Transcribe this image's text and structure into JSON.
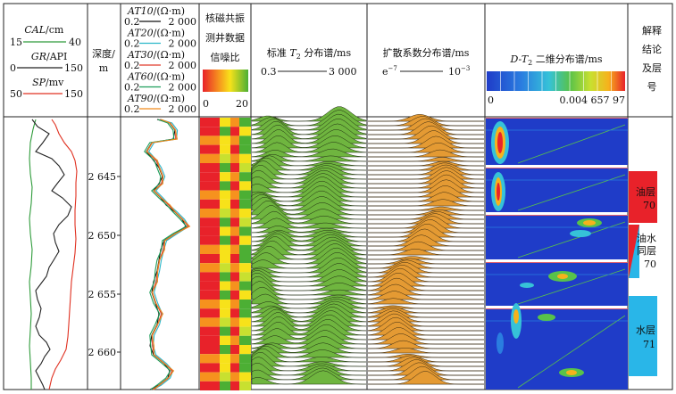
{
  "track1": {
    "cal": {
      "name": "CAL",
      "unit": "/cm",
      "min": "15",
      "max": "40",
      "color": "#2e9b3a"
    },
    "gr": {
      "name": "GR",
      "unit": "/API",
      "min": "0",
      "max": "150",
      "color": "#222222"
    },
    "sp": {
      "name": "SP",
      "unit": "/mv",
      "min": "50",
      "max": "150",
      "color": "#e03020"
    }
  },
  "depth": {
    "label_line1": "深度/",
    "label_line2": "m",
    "ticks": [
      "2 645",
      "2 650",
      "2 655",
      "2 660"
    ]
  },
  "track3": {
    "curves": [
      {
        "name": "AT10",
        "unit": "/(Ω·m)",
        "min": "0.2",
        "max": "2 000",
        "color": "#111111"
      },
      {
        "name": "AT20",
        "unit": "/(Ω·m)",
        "min": "0.2",
        "max": "2 000",
        "color": "#2bb7c9"
      },
      {
        "name": "AT30",
        "unit": "/(Ω·m)",
        "min": "0.2",
        "max": "2 000",
        "color": "#e03a2a"
      },
      {
        "name": "AT60",
        "unit": "/(Ω·m)",
        "min": "0.2",
        "max": "2 000",
        "color": "#1d9e5a"
      },
      {
        "name": "AT90",
        "unit": "/(Ω·m)",
        "min": "0.2",
        "max": "2 000",
        "color": "#f08a1c"
      }
    ]
  },
  "track4": {
    "title_line1": "核磁共振",
    "title_line2": "测井数据",
    "title_line3": "信噪比",
    "min": "0",
    "max": "20"
  },
  "track5": {
    "title_prefix": "标准 ",
    "title_sym": "T",
    "title_sub": "2",
    "title_suffix": " 分布谱/ms",
    "min": "0.3",
    "max": "3 000",
    "fill": "#6fb53f"
  },
  "track6": {
    "title": "扩散系数分布谱/ms",
    "min_base": "e",
    "min_exp": "−7",
    "max_base": "10",
    "max_exp": "−3",
    "fill": "#e49a33"
  },
  "track7": {
    "title_sym": "D-T",
    "title_sub": "2",
    "title_suffix": " 二维分布谱/ms",
    "min": "0",
    "max": "0.004 657 97"
  },
  "track8": {
    "title_line1": "解释",
    "title_line2": "结论",
    "title_line3": "及层",
    "title_line4": "号",
    "zones": [
      {
        "line1": "油层",
        "line2": "70",
        "color": "#e8222a"
      },
      {
        "line1": "油水",
        "line2": "同层",
        "line3": "70",
        "color": "#e8222a",
        "color2": "#29b6e8"
      },
      {
        "line1": "水层",
        "line2": "71",
        "color": "#29b6e8"
      }
    ]
  }
}
